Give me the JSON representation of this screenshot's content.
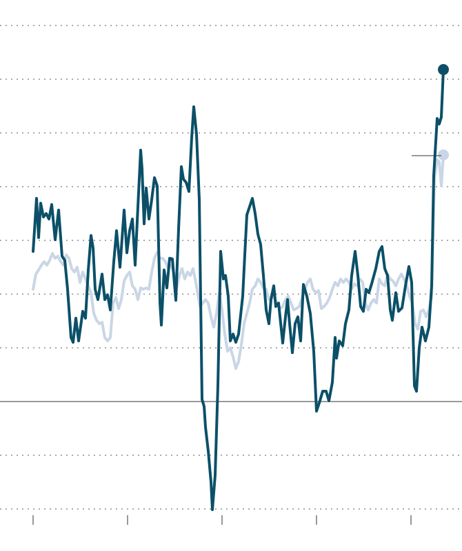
{
  "chart_data": {
    "type": "line",
    "xlim": [
      -48,
      622
    ],
    "xticks": [
      0,
      137,
      274,
      411,
      548
    ],
    "ylim": [
      -217,
      583
    ],
    "yticks": [
      -156,
      -78,
      0,
      78,
      156,
      234,
      312,
      390,
      468,
      546
    ],
    "grid": true,
    "series": [
      {
        "color": "#c9d6e6",
        "x": [
          0,
          4,
          8,
          12,
          16,
          20,
          24,
          28,
          32,
          36,
          40,
          44,
          48,
          52,
          56,
          60,
          64,
          68,
          72,
          76,
          80,
          84,
          88,
          92,
          96,
          100,
          104,
          108,
          112,
          116,
          120,
          124,
          128,
          132,
          136,
          140,
          144,
          148,
          152,
          156,
          160,
          164,
          168,
          172,
          176,
          180,
          184,
          188,
          192,
          196,
          200,
          204,
          208,
          212,
          216,
          220,
          224,
          228,
          232,
          236,
          242,
          246,
          250,
          254,
          258,
          262,
          266,
          270,
          274,
          278,
          282,
          286,
          290,
          294,
          298,
          302,
          306,
          310,
          314,
          318,
          322,
          326,
          330,
          334,
          338,
          342,
          346,
          350,
          354,
          358,
          362,
          366,
          370,
          374,
          378,
          382,
          386,
          390,
          394,
          398,
          402,
          406,
          410,
          414,
          418,
          422,
          426,
          430,
          434,
          438,
          442,
          446,
          450,
          454,
          458,
          462,
          466,
          470,
          474,
          478,
          482,
          486,
          490,
          494,
          498,
          502,
          506,
          510,
          514,
          518,
          522,
          526,
          530,
          534,
          538,
          542,
          546,
          550,
          554,
          558,
          562,
          566,
          570,
          574,
          578,
          582,
          586,
          589,
          592,
          595
        ],
        "values": [
          163,
          185,
          191,
          198,
          203,
          198,
          205,
          215,
          208,
          211,
          203,
          198,
          213,
          208,
          193,
          188,
          195,
          173,
          188,
          178,
          168,
          158,
          128,
          118,
          113,
          115,
          93,
          88,
          93,
          143,
          151,
          135,
          148,
          175,
          183,
          188,
          168,
          163,
          148,
          165,
          163,
          165,
          163,
          188,
          208,
          217,
          208,
          208,
          203,
          193,
          198,
          188,
          163,
          183,
          193,
          178,
          188,
          183,
          193,
          173,
          138,
          143,
          148,
          143,
          123,
          108,
          128,
          158,
          133,
          98,
          73,
          78,
          65,
          48,
          58,
          83,
          113,
          128,
          143,
          163,
          168,
          178,
          173,
          165,
          163,
          148,
          153,
          151,
          141,
          135,
          138,
          148,
          153,
          143,
          133,
          135,
          138,
          151,
          163,
          173,
          178,
          163,
          158,
          161,
          135,
          138,
          143,
          151,
          163,
          173,
          168,
          178,
          173,
          178,
          173,
          163,
          171,
          168,
          178,
          173,
          143,
          133,
          143,
          148,
          143,
          178,
          171,
          168,
          185,
          178,
          175,
          168,
          178,
          185,
          178,
          168,
          153,
          143,
          113,
          105,
          131,
          133,
          123,
          133,
          153,
          323,
          351,
          348,
          313,
          358
        ]
      },
      {
        "color": "#0b5068",
        "x": [
          0,
          5,
          8,
          11,
          15,
          19,
          23,
          27,
          32,
          37,
          42,
          46,
          50,
          55,
          58,
          62,
          66,
          72,
          76,
          80,
          84,
          87,
          90,
          94,
          100,
          104,
          108,
          112,
          117,
          121,
          126,
          132,
          136,
          140,
          144,
          148,
          152,
          156,
          158,
          161,
          164,
          168,
          172,
          176,
          180,
          184,
          186,
          190,
          194,
          198,
          202,
          207,
          211,
          215,
          218,
          222,
          226,
          230,
          233,
          237,
          241,
          245,
          248,
          250,
          254,
          258,
          260,
          264,
          268,
          272,
          276,
          279,
          283,
          286,
          290,
          294,
          298,
          304,
          307,
          310,
          314,
          318,
          322,
          326,
          330,
          334,
          338,
          342,
          345,
          349,
          352,
          356,
          362,
          366,
          369,
          372,
          376,
          380,
          384,
          388,
          392,
          397,
          402,
          407,
          411,
          415,
          420,
          425,
          429,
          434,
          438,
          440,
          444,
          449,
          453,
          458,
          462,
          467,
          471,
          475,
          479,
          483,
          487,
          491,
          497,
          502,
          506,
          510,
          514,
          518,
          521,
          526,
          530,
          535,
          540,
          545,
          549,
          553,
          556,
          560,
          564,
          569,
          574,
          578,
          581,
          586,
          589,
          592,
          595
        ],
        "values": [
          218,
          295,
          238,
          288,
          268,
          273,
          265,
          286,
          235,
          278,
          211,
          205,
          163,
          93,
          86,
          121,
          88,
          131,
          121,
          191,
          241,
          223,
          163,
          148,
          185,
          148,
          155,
          133,
          203,
          248,
          195,
          278,
          216,
          248,
          265,
          198,
          283,
          365,
          338,
          258,
          310,
          265,
          293,
          325,
          313,
          143,
          111,
          191,
          165,
          208,
          207,
          147,
          251,
          341,
          323,
          318,
          305,
          383,
          428,
          388,
          293,
          3,
          -7,
          -37,
          -72,
          -117,
          -157,
          -107,
          23,
          218,
          178,
          183,
          153,
          88,
          98,
          86,
          98,
          153,
          213,
          271,
          283,
          295,
          273,
          243,
          228,
          183,
          133,
          113,
          148,
          168,
          138,
          143,
          85,
          123,
          148,
          113,
          71,
          113,
          123,
          88,
          170,
          153,
          128,
          73,
          -14,
          -2,
          15,
          15,
          1,
          28,
          93,
          63,
          88,
          81,
          113,
          133,
          183,
          218,
          183,
          138,
          131,
          163,
          158,
          171,
          193,
          218,
          225,
          193,
          183,
          133,
          118,
          158,
          131,
          136,
          168,
          196,
          173,
          23,
          15,
          78,
          108,
          88,
          108,
          168,
          328,
          411,
          403,
          413,
          482
        ]
      }
    ]
  }
}
